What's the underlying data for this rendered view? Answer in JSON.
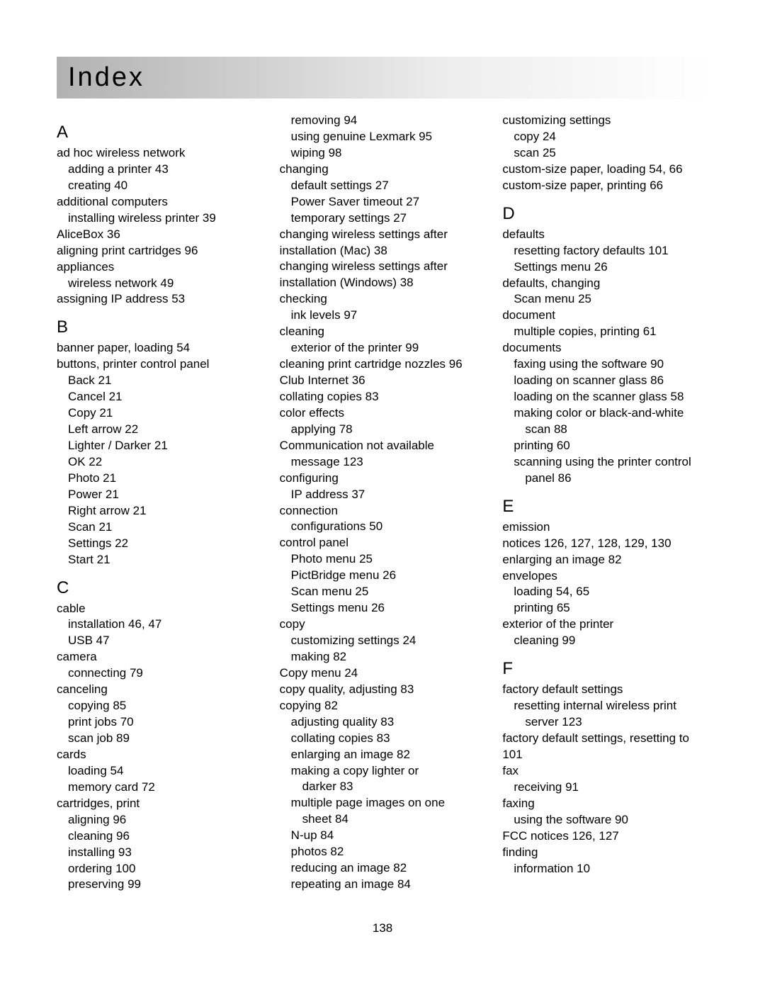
{
  "title": "Index",
  "page_number": "138",
  "columns": [
    {
      "blocks": [
        {
          "type": "letter",
          "text": "A"
        },
        {
          "type": "entry",
          "level": 0,
          "text": "ad hoc wireless network"
        },
        {
          "type": "entry",
          "level": 1,
          "text": "adding a printer  43"
        },
        {
          "type": "entry",
          "level": 1,
          "text": "creating  40"
        },
        {
          "type": "entry",
          "level": 0,
          "text": "additional computers"
        },
        {
          "type": "entry",
          "level": 1,
          "text": "installing wireless printer  39"
        },
        {
          "type": "entry",
          "level": 0,
          "text": "AliceBox  36"
        },
        {
          "type": "entry",
          "level": 0,
          "text": "aligning print cartridges  96"
        },
        {
          "type": "entry",
          "level": 0,
          "text": "appliances"
        },
        {
          "type": "entry",
          "level": 1,
          "text": "wireless network  49"
        },
        {
          "type": "entry",
          "level": 0,
          "text": "assigning IP address  53"
        },
        {
          "type": "letter",
          "text": "B"
        },
        {
          "type": "entry",
          "level": 0,
          "text": "banner paper, loading  54"
        },
        {
          "type": "entry",
          "level": 0,
          "text": "buttons, printer control panel"
        },
        {
          "type": "entry",
          "level": 1,
          "text": "Back  21"
        },
        {
          "type": "entry",
          "level": 1,
          "text": "Cancel  21"
        },
        {
          "type": "entry",
          "level": 1,
          "text": "Copy  21"
        },
        {
          "type": "entry",
          "level": 1,
          "text": "Left arrow  22"
        },
        {
          "type": "entry",
          "level": 1,
          "text": "Lighter / Darker  21"
        },
        {
          "type": "entry",
          "level": 1,
          "text": "OK  22"
        },
        {
          "type": "entry",
          "level": 1,
          "text": "Photo  21"
        },
        {
          "type": "entry",
          "level": 1,
          "text": "Power  21"
        },
        {
          "type": "entry",
          "level": 1,
          "text": "Right arrow  21"
        },
        {
          "type": "entry",
          "level": 1,
          "text": "Scan  21"
        },
        {
          "type": "entry",
          "level": 1,
          "text": "Settings  22"
        },
        {
          "type": "entry",
          "level": 1,
          "text": "Start  21"
        },
        {
          "type": "letter",
          "text": "C"
        },
        {
          "type": "entry",
          "level": 0,
          "text": "cable"
        },
        {
          "type": "entry",
          "level": 1,
          "text": "installation  46, 47"
        },
        {
          "type": "entry",
          "level": 1,
          "text": "USB  47"
        },
        {
          "type": "entry",
          "level": 0,
          "text": "camera"
        },
        {
          "type": "entry",
          "level": 1,
          "text": "connecting  79"
        },
        {
          "type": "entry",
          "level": 0,
          "text": "canceling"
        },
        {
          "type": "entry",
          "level": 1,
          "text": "copying  85"
        },
        {
          "type": "entry",
          "level": 1,
          "text": "print jobs  70"
        },
        {
          "type": "entry",
          "level": 1,
          "text": "scan job  89"
        },
        {
          "type": "entry",
          "level": 0,
          "text": "cards"
        },
        {
          "type": "entry",
          "level": 1,
          "text": "loading  54"
        },
        {
          "type": "entry",
          "level": 1,
          "text": "memory card  72"
        },
        {
          "type": "entry",
          "level": 0,
          "text": "cartridges, print"
        },
        {
          "type": "entry",
          "level": 1,
          "text": "aligning  96"
        },
        {
          "type": "entry",
          "level": 1,
          "text": "cleaning  96"
        },
        {
          "type": "entry",
          "level": 1,
          "text": "installing  93"
        },
        {
          "type": "entry",
          "level": 1,
          "text": "ordering  100"
        },
        {
          "type": "entry",
          "level": 1,
          "text": "preserving  99"
        }
      ]
    },
    {
      "blocks": [
        {
          "type": "entry",
          "level": 1,
          "text": "removing  94"
        },
        {
          "type": "entry",
          "level": 1,
          "text": "using genuine Lexmark  95"
        },
        {
          "type": "entry",
          "level": 1,
          "text": "wiping  98"
        },
        {
          "type": "entry",
          "level": 0,
          "text": "changing"
        },
        {
          "type": "entry",
          "level": 1,
          "text": "default settings  27"
        },
        {
          "type": "entry",
          "level": 1,
          "text": "Power Saver timeout  27"
        },
        {
          "type": "entry",
          "level": 1,
          "text": "temporary settings  27"
        },
        {
          "type": "entry",
          "level": 0,
          "text": "changing wireless settings after installation (Mac)  38"
        },
        {
          "type": "entry",
          "level": 0,
          "text": "changing wireless settings after installation (Windows)  38"
        },
        {
          "type": "entry",
          "level": 0,
          "text": "checking"
        },
        {
          "type": "entry",
          "level": 1,
          "text": "ink levels  97"
        },
        {
          "type": "entry",
          "level": 0,
          "text": "cleaning"
        },
        {
          "type": "entry",
          "level": 1,
          "text": "exterior of the printer  99"
        },
        {
          "type": "entry",
          "level": 0,
          "text": "cleaning print cartridge nozzles  96"
        },
        {
          "type": "entry",
          "level": 0,
          "text": "Club Internet  36"
        },
        {
          "type": "entry",
          "level": 0,
          "text": "collating copies  83"
        },
        {
          "type": "entry",
          "level": 0,
          "text": "color effects"
        },
        {
          "type": "entry",
          "level": 1,
          "text": "applying  78"
        },
        {
          "type": "entry",
          "level": 0,
          "text": "Communication not available"
        },
        {
          "type": "entry",
          "level": 1,
          "text": "message  123"
        },
        {
          "type": "entry",
          "level": 0,
          "text": "configuring"
        },
        {
          "type": "entry",
          "level": 1,
          "text": "IP address  37"
        },
        {
          "type": "entry",
          "level": 0,
          "text": "connection"
        },
        {
          "type": "entry",
          "level": 1,
          "text": "configurations  50"
        },
        {
          "type": "entry",
          "level": 0,
          "text": "control panel"
        },
        {
          "type": "entry",
          "level": 1,
          "text": "Photo menu  25"
        },
        {
          "type": "entry",
          "level": 1,
          "text": "PictBridge menu  26"
        },
        {
          "type": "entry",
          "level": 1,
          "text": "Scan menu  25"
        },
        {
          "type": "entry",
          "level": 1,
          "text": "Settings menu  26"
        },
        {
          "type": "entry",
          "level": 0,
          "text": "copy"
        },
        {
          "type": "entry",
          "level": 1,
          "text": "customizing settings  24"
        },
        {
          "type": "entry",
          "level": 1,
          "text": "making  82"
        },
        {
          "type": "entry",
          "level": 0,
          "text": "Copy menu  24"
        },
        {
          "type": "entry",
          "level": 0,
          "text": "copy quality, adjusting  83"
        },
        {
          "type": "entry",
          "level": 0,
          "text": "copying  82"
        },
        {
          "type": "entry",
          "level": 1,
          "text": "adjusting quality  83"
        },
        {
          "type": "entry",
          "level": 1,
          "text": "collating copies  83"
        },
        {
          "type": "entry",
          "level": 1,
          "text": "enlarging an image  82"
        },
        {
          "type": "entry",
          "level": 1,
          "text": "making a copy lighter or"
        },
        {
          "type": "entry",
          "level": 2,
          "text": "darker  83"
        },
        {
          "type": "entry",
          "level": 1,
          "text": "multiple page images on one"
        },
        {
          "type": "entry",
          "level": 2,
          "text": "sheet  84"
        },
        {
          "type": "entry",
          "level": 1,
          "text": "N-up  84"
        },
        {
          "type": "entry",
          "level": 1,
          "text": "photos  82"
        },
        {
          "type": "entry",
          "level": 1,
          "text": "reducing an image  82"
        },
        {
          "type": "entry",
          "level": 1,
          "text": "repeating an image  84"
        }
      ]
    },
    {
      "blocks": [
        {
          "type": "entry",
          "level": 0,
          "text": "customizing settings"
        },
        {
          "type": "entry",
          "level": 1,
          "text": "copy  24"
        },
        {
          "type": "entry",
          "level": 1,
          "text": "scan  25"
        },
        {
          "type": "entry",
          "level": 0,
          "text": "custom-size paper, loading  54, 66"
        },
        {
          "type": "entry",
          "level": 0,
          "text": "custom-size paper, printing  66"
        },
        {
          "type": "letter",
          "text": "D"
        },
        {
          "type": "entry",
          "level": 0,
          "text": "defaults"
        },
        {
          "type": "entry",
          "level": 1,
          "text": "resetting factory defaults  101"
        },
        {
          "type": "entry",
          "level": 1,
          "text": "Settings menu  26"
        },
        {
          "type": "entry",
          "level": 0,
          "text": "defaults, changing"
        },
        {
          "type": "entry",
          "level": 1,
          "text": "Scan menu  25"
        },
        {
          "type": "entry",
          "level": 0,
          "text": "document"
        },
        {
          "type": "entry",
          "level": 1,
          "text": "multiple copies, printing  61"
        },
        {
          "type": "entry",
          "level": 0,
          "text": "documents"
        },
        {
          "type": "entry",
          "level": 1,
          "text": "faxing using the software  90"
        },
        {
          "type": "entry",
          "level": 1,
          "text": "loading on scanner glass  86"
        },
        {
          "type": "entry",
          "level": 1,
          "text": "loading on the scanner glass  58"
        },
        {
          "type": "entry",
          "level": 1,
          "text": "making color or black-and-white"
        },
        {
          "type": "entry",
          "level": 2,
          "text": "scan  88"
        },
        {
          "type": "entry",
          "level": 1,
          "text": "printing  60"
        },
        {
          "type": "entry",
          "level": 1,
          "text": "scanning using the printer control"
        },
        {
          "type": "entry",
          "level": 2,
          "text": "panel  86"
        },
        {
          "type": "letter",
          "text": "E"
        },
        {
          "type": "entry",
          "level": 0,
          "text": "emission"
        },
        {
          "type": "entry",
          "level": 0,
          "text": "notices  126, 127, 128, 129, 130"
        },
        {
          "type": "entry",
          "level": 0,
          "text": "enlarging an image  82"
        },
        {
          "type": "entry",
          "level": 0,
          "text": "envelopes"
        },
        {
          "type": "entry",
          "level": 1,
          "text": "loading  54, 65"
        },
        {
          "type": "entry",
          "level": 1,
          "text": "printing  65"
        },
        {
          "type": "entry",
          "level": 0,
          "text": "exterior of the printer"
        },
        {
          "type": "entry",
          "level": 1,
          "text": "cleaning  99"
        },
        {
          "type": "letter",
          "text": "F"
        },
        {
          "type": "entry",
          "level": 0,
          "text": "factory default settings"
        },
        {
          "type": "entry",
          "level": 1,
          "text": "resetting internal wireless print"
        },
        {
          "type": "entry",
          "level": 2,
          "text": "server  123"
        },
        {
          "type": "entry",
          "level": 0,
          "text": "factory default settings, resetting to  101"
        },
        {
          "type": "entry",
          "level": 0,
          "text": "fax"
        },
        {
          "type": "entry",
          "level": 1,
          "text": "receiving  91"
        },
        {
          "type": "entry",
          "level": 0,
          "text": "faxing"
        },
        {
          "type": "entry",
          "level": 1,
          "text": "using the software  90"
        },
        {
          "type": "entry",
          "level": 0,
          "text": "FCC notices  126, 127"
        },
        {
          "type": "entry",
          "level": 0,
          "text": "finding"
        },
        {
          "type": "entry",
          "level": 1,
          "text": "information  10"
        }
      ]
    }
  ]
}
